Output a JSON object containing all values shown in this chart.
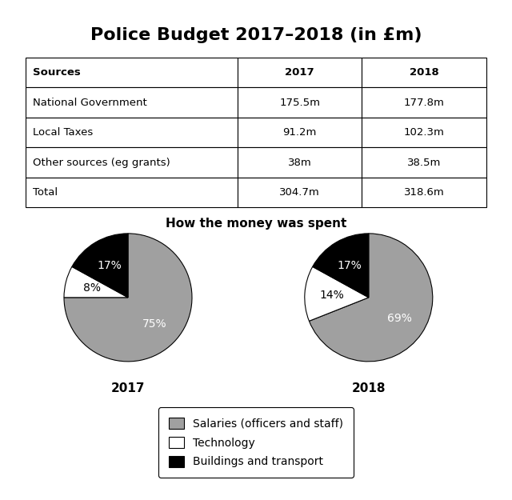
{
  "title": "Police Budget 2017–2018 (in £m)",
  "table": {
    "headers": [
      "Sources",
      "2017",
      "2018"
    ],
    "rows": [
      [
        "National Government",
        "175.5m",
        "177.8m"
      ],
      [
        "Local Taxes",
        "91.2m",
        "102.3m"
      ],
      [
        "Other sources (eg grants)",
        "38m",
        "38.5m"
      ],
      [
        "Total",
        "304.7m",
        "318.6m"
      ]
    ]
  },
  "pie_title": "How the money was spent",
  "pie_2017": {
    "label": "2017",
    "values": [
      75,
      8,
      17
    ],
    "colors": [
      "#a0a0a0",
      "#ffffff",
      "#000000"
    ],
    "pct_labels": [
      "75%",
      "8%",
      "17%"
    ],
    "pct_colors": [
      "white",
      "black",
      "white"
    ]
  },
  "pie_2018": {
    "label": "2018",
    "values": [
      69,
      14,
      17
    ],
    "colors": [
      "#a0a0a0",
      "#ffffff",
      "#000000"
    ],
    "pct_labels": [
      "69%",
      "14%",
      "17%"
    ],
    "pct_colors": [
      "white",
      "black",
      "white"
    ]
  },
  "legend_labels": [
    "Salaries (officers and staff)",
    "Technology",
    "Buildings and transport"
  ],
  "legend_colors": [
    "#a0a0a0",
    "#ffffff",
    "#000000"
  ],
  "background_color": "#ffffff",
  "title_fontsize": 16,
  "table_fontsize": 9.5,
  "pie_title_fontsize": 11,
  "year_label_fontsize": 11,
  "legend_fontsize": 10
}
